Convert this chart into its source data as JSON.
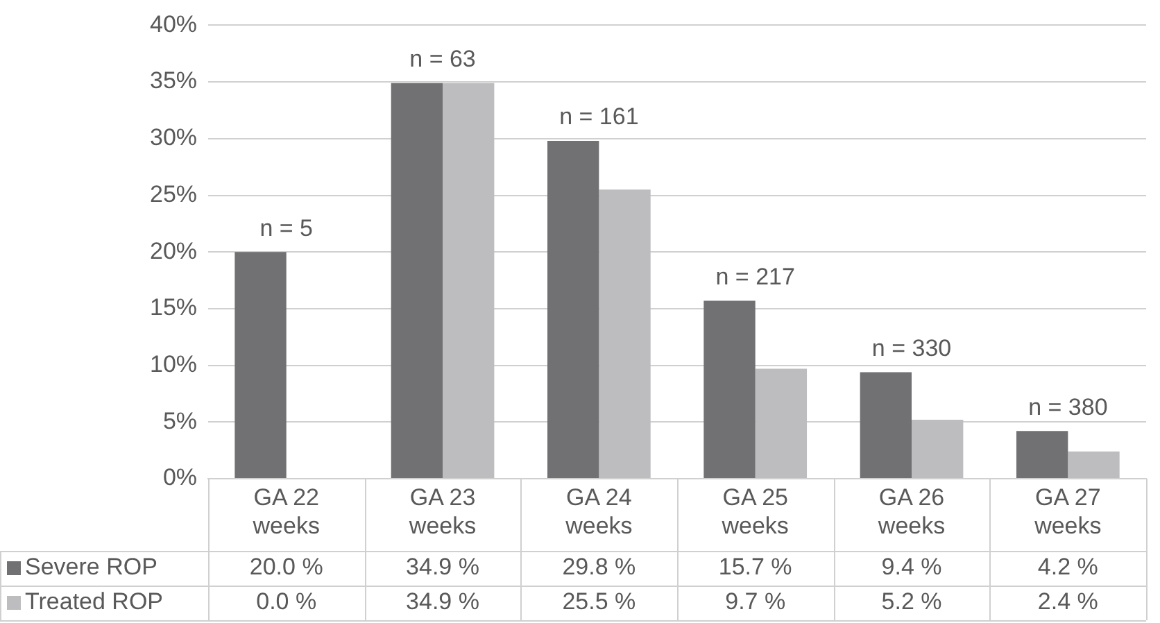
{
  "chart_data": {
    "type": "bar",
    "categories": [
      "GA 22 weeks",
      "GA 23 weeks",
      "GA 24 weeks",
      "GA 25 weeks",
      "GA 26 weeks",
      "GA 27 weeks"
    ],
    "series": [
      {
        "name": "Severe ROP",
        "color": "#717174",
        "values": [
          20.0,
          34.9,
          29.8,
          15.7,
          9.4,
          4.2
        ],
        "value_labels": [
          "20.0 %",
          "34.9 %",
          "29.8 %",
          "15.7 %",
          "9.4 %",
          "4.2 %"
        ]
      },
      {
        "name": "Treated ROP",
        "color": "#bdbdc0",
        "values": [
          0.0,
          34.9,
          25.5,
          9.7,
          5.2,
          2.4
        ],
        "value_labels": [
          "0.0 %",
          "34.9 %",
          "25.5 %",
          "9.7 %",
          "5.2 %",
          "2.4 %"
        ]
      }
    ],
    "ylim": [
      0,
      40
    ],
    "yticks": [
      {
        "value": 0,
        "label": "0%"
      },
      {
        "value": 5,
        "label": "5%"
      },
      {
        "value": 10,
        "label": "10%"
      },
      {
        "value": 15,
        "label": "15%"
      },
      {
        "value": 20,
        "label": "20%"
      },
      {
        "value": 25,
        "label": "25%"
      },
      {
        "value": 30,
        "label": "30%"
      },
      {
        "value": 35,
        "label": "35%"
      },
      {
        "value": 40,
        "label": "40%"
      }
    ],
    "grid": "y",
    "legend": "bottom left",
    "annotations": [
      {
        "text": "n = 5",
        "x": "GA 22 weeks",
        "y": 20.0
      },
      {
        "text": "n = 63",
        "x": "GA 23 weeks",
        "y": 34.9
      },
      {
        "text": "n = 161",
        "x": "GA 24 weeks",
        "y": 29.8
      },
      {
        "text": "n = 217",
        "x": "GA 25 weeks",
        "y": 15.7
      },
      {
        "text": "n = 330",
        "x": "GA 26 weeks",
        "y": 9.4
      },
      {
        "text": "n = 380",
        "x": "GA 27 weeks",
        "y": 4.2
      }
    ]
  }
}
